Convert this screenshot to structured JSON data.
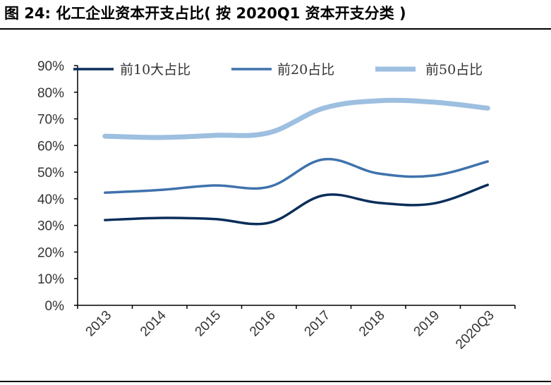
{
  "figure": {
    "title": "图 24:  化工企业资本开支占比( 按 2020Q1 资本开支分类 )"
  },
  "colors": {
    "top10": "#0b2e5a",
    "top20": "#3f72ac",
    "top50": "#9dbfe0",
    "axis": "#000000"
  },
  "chart_data": {
    "type": "line",
    "categories": [
      "2013",
      "2014",
      "2015",
      "2016",
      "2017",
      "2018",
      "2019",
      "2020Q3"
    ],
    "ylim": [
      0,
      90
    ],
    "yticks": [
      "0%",
      "10%",
      "20%",
      "30%",
      "40%",
      "50%",
      "60%",
      "70%",
      "80%",
      "90%"
    ],
    "legend_position": "top",
    "grid": false,
    "series": [
      {
        "name": "前10大占比",
        "values": [
          32,
          32.8,
          32.4,
          31,
          41.3,
          38.5,
          38.2,
          45.2
        ]
      },
      {
        "name": "前20占比",
        "values": [
          42.3,
          43.3,
          45,
          44.5,
          54.8,
          49.5,
          48.7,
          54
        ]
      },
      {
        "name": "前50占比",
        "values": [
          63.5,
          63,
          63.8,
          64.8,
          74,
          76.8,
          76.3,
          74
        ]
      }
    ]
  }
}
